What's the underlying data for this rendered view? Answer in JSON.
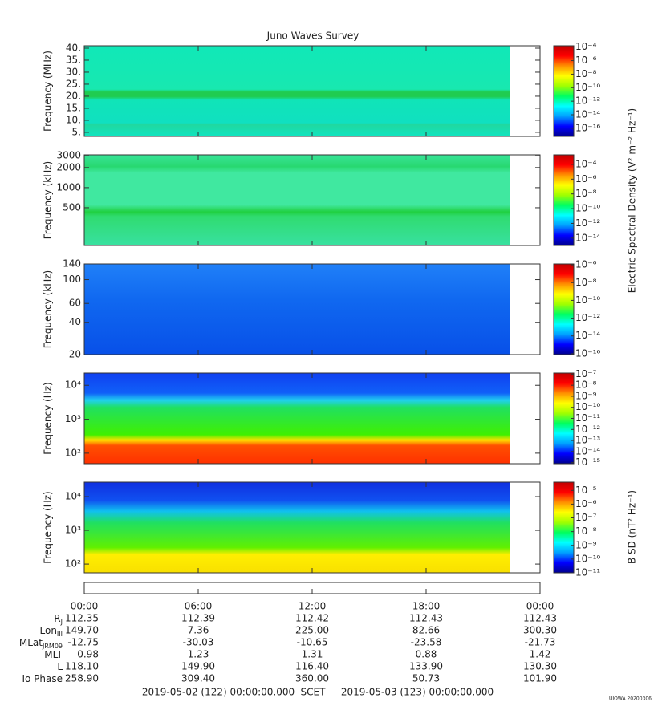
{
  "chart_data": [
    {
      "type": "spectrogram",
      "title": "Juno Waves Survey",
      "ylabel": "Frequency (MHz)",
      "log": false,
      "ylim": [
        3.3,
        41
      ],
      "yticks": [
        {
          "value": 5,
          "label": "5."
        },
        {
          "value": 10,
          "label": "10."
        },
        {
          "value": 15,
          "label": "15."
        },
        {
          "value": 20,
          "label": "20."
        },
        {
          "value": 25,
          "label": "25."
        },
        {
          "value": 30,
          "label": "30."
        },
        {
          "value": 35,
          "label": "35."
        },
        {
          "value": 40,
          "label": "40."
        }
      ],
      "clim": [
        -17.2,
        -3.8
      ],
      "cticks": [
        {
          "value": -4,
          "label": "10⁻⁴"
        },
        {
          "value": -6,
          "label": "10⁻⁶"
        },
        {
          "value": -8,
          "label": "10⁻⁸"
        },
        {
          "value": -10,
          "label": "10⁻¹⁰"
        },
        {
          "value": -12,
          "label": "10⁻¹²"
        },
        {
          "value": -14,
          "label": "10⁻¹⁴"
        },
        {
          "value": -16,
          "label": "10⁻¹⁶"
        }
      ]
    },
    {
      "type": "spectrogram",
      "ylabel": "Frequency (kHz)",
      "log": true,
      "ylim": [
        136,
        3100
      ],
      "yticks": [
        500,
        1000,
        2000,
        3000
      ],
      "clim": [
        -15,
        -2.7
      ],
      "cticks": [
        {
          "value": -4,
          "label": "10⁻⁴"
        },
        {
          "value": -6,
          "label": "10⁻⁶"
        },
        {
          "value": -8,
          "label": "10⁻⁸"
        },
        {
          "value": -10,
          "label": "10⁻¹⁰"
        },
        {
          "value": -12,
          "label": "10⁻¹²"
        },
        {
          "value": -14,
          "label": "10⁻¹⁴"
        }
      ]
    },
    {
      "type": "spectrogram",
      "ylabel": "Frequency (kHz)",
      "log": true,
      "ylim": [
        20,
        140
      ],
      "yticks": [
        20,
        40,
        60,
        100,
        140
      ],
      "clim": [
        -16.1,
        -5.9
      ],
      "cticks": [
        {
          "value": -6,
          "label": "10⁻⁶"
        },
        {
          "value": -8,
          "label": "10⁻⁸"
        },
        {
          "value": -10,
          "label": "10⁻¹⁰"
        },
        {
          "value": -12,
          "label": "10⁻¹²"
        },
        {
          "value": -14,
          "label": "10⁻¹⁴"
        },
        {
          "value": -16,
          "label": "10⁻¹⁶"
        }
      ]
    },
    {
      "type": "spectrogram",
      "ylabel": "Frequency (Hz)",
      "log": true,
      "ylim": [
        49,
        22900
      ],
      "yticks": [
        {
          "value": 100,
          "label": "10²"
        },
        {
          "value": 1000,
          "label": "10³"
        },
        {
          "value": 10000,
          "label": "10⁴"
        }
      ],
      "clim": [
        -15.1,
        -6.9
      ],
      "cticks": [
        {
          "value": -7,
          "label": "10⁻⁷"
        },
        {
          "value": -8,
          "label": "10⁻⁸"
        },
        {
          "value": -9,
          "label": "10⁻⁹"
        },
        {
          "value": -10,
          "label": "10⁻¹⁰"
        },
        {
          "value": -11,
          "label": "10⁻¹¹"
        },
        {
          "value": -12,
          "label": "10⁻¹²"
        },
        {
          "value": -13,
          "label": "10⁻¹³"
        },
        {
          "value": -14,
          "label": "10⁻¹⁴"
        },
        {
          "value": -15,
          "label": "10⁻¹⁵"
        }
      ]
    },
    {
      "type": "spectrogram",
      "ylabel": "Frequency (Hz)",
      "log": true,
      "ylim": [
        55,
        26800
      ],
      "yticks": [
        {
          "value": 100,
          "label": "10²"
        },
        {
          "value": 1000,
          "label": "10³"
        },
        {
          "value": 10000,
          "label": "10⁴"
        }
      ],
      "clim": [
        -11,
        -4.4
      ],
      "cticks": [
        {
          "value": -5,
          "label": "10⁻⁵"
        },
        {
          "value": -6,
          "label": "10⁻⁶"
        },
        {
          "value": -7,
          "label": "10⁻⁷"
        },
        {
          "value": -8,
          "label": "10⁻⁸"
        },
        {
          "value": -9,
          "label": "10⁻⁹"
        },
        {
          "value": -10,
          "label": "10⁻¹⁰"
        },
        {
          "value": -11,
          "label": "10⁻¹¹"
        }
      ]
    }
  ],
  "colormap": [
    "#00008f",
    "#0000ff",
    "#00a0ff",
    "#00ffff",
    "#00ff60",
    "#a0ff00",
    "#ffff00",
    "#ff9000",
    "#ff0000",
    "#c00000"
  ],
  "colorbar_labels": [
    "Electric Spectral Density (V² m⁻² Hz⁻¹)",
    "B SD (nT² Hz⁻¹)"
  ],
  "xlim": [
    0,
    24
  ],
  "xticks": [
    {
      "value": 0,
      "label": "00:00"
    },
    {
      "value": 6,
      "label": "06:00"
    },
    {
      "value": 12,
      "label": "12:00"
    },
    {
      "value": 18,
      "label": "18:00"
    },
    {
      "value": 24,
      "label": "00:00"
    }
  ],
  "ephemeris": [
    {
      "label": [
        "R",
        "J"
      ],
      "values": [
        "112.35",
        "112.39",
        "112.42",
        "112.43",
        "112.43"
      ]
    },
    {
      "label": [
        "Lon",
        "III"
      ],
      "values": [
        "149.70",
        "7.36",
        "225.00",
        "82.66",
        "300.30"
      ]
    },
    {
      "label": [
        "MLat",
        "JRM09"
      ],
      "values": [
        "-12.75",
        "-30.03",
        "-10.65",
        "-23.58",
        "-21.73"
      ]
    },
    {
      "label": [
        "MLT"
      ],
      "values": [
        "0.98",
        "1.23",
        "1.31",
        "0.88",
        "1.42"
      ]
    },
    {
      "label": [
        "L"
      ],
      "values": [
        "118.10",
        "149.90",
        "116.40",
        "133.90",
        "130.30"
      ]
    },
    {
      "label": [
        "Io Phase"
      ],
      "values": [
        "258.90",
        "309.40",
        "360.00",
        "50.73",
        "101.90"
      ]
    }
  ],
  "footer": [
    "2019-05-02 (122) 00:00:00.000",
    "SCET",
    "2019-05-03 (123) 00:00:00.000"
  ],
  "stamp": "UIOWA 20200306"
}
